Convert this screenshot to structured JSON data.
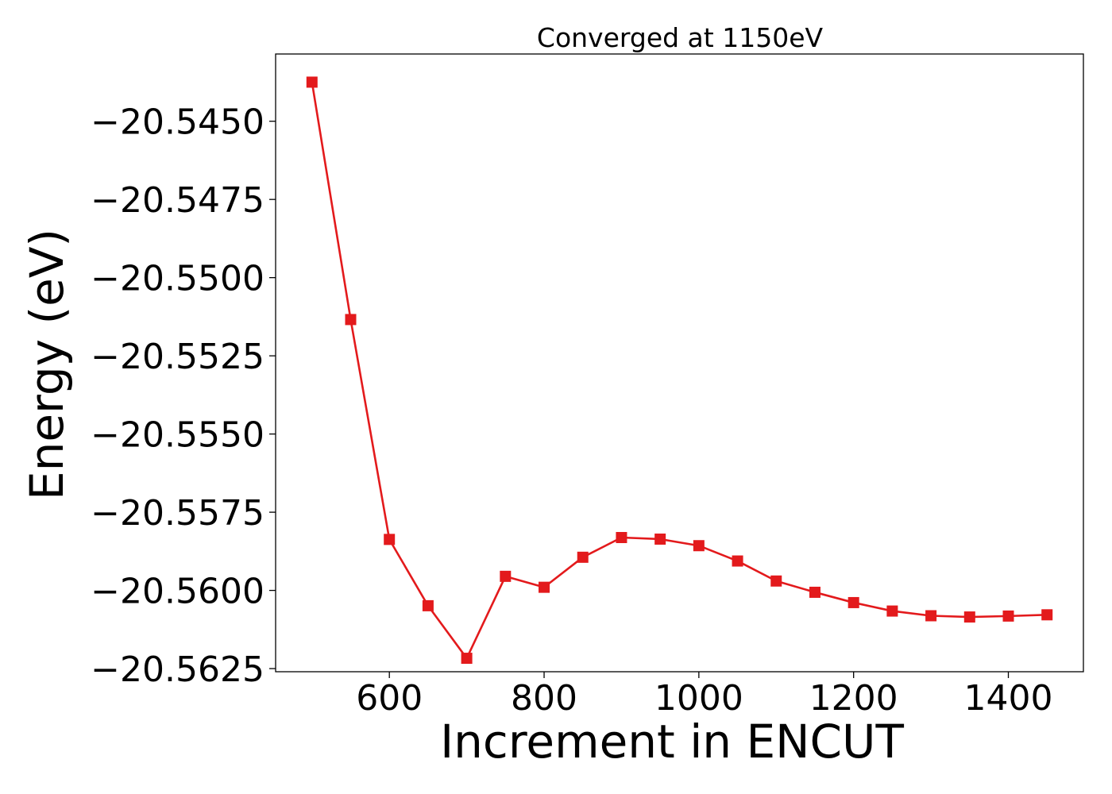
{
  "chart_data": {
    "type": "line",
    "title": "Converged at 1150eV",
    "xlabel": "Increment in ENCUT",
    "ylabel": "Energy (eV)",
    "xlim": [
      453,
      1497
    ],
    "ylim": [
      -20.5626,
      -20.54285
    ],
    "xticks": [
      600,
      800,
      1000,
      1200,
      1400
    ],
    "yticks": [
      -20.545,
      -20.5475,
      -20.55,
      -20.5525,
      -20.555,
      -20.5575,
      -20.56,
      -20.5625
    ],
    "ytick_labels": [
      "−20.5450",
      "−20.5475",
      "−20.5500",
      "−20.5525",
      "−20.5550",
      "−20.5575",
      "−20.5600",
      "−20.5625"
    ],
    "grid": false,
    "legend": "none",
    "color": "#e31a1c",
    "marker": "square",
    "series": [
      {
        "x": [
          500,
          550,
          600,
          650,
          700,
          750,
          800,
          850,
          900,
          950,
          1000,
          1050,
          1100,
          1150,
          1200,
          1250,
          1300,
          1350,
          1400,
          1450
        ],
        "y": [
          -20.54375,
          -20.55134,
          -20.55837,
          -20.56049,
          -20.56217,
          -20.55955,
          -20.5599,
          -20.55894,
          -20.55831,
          -20.55836,
          -20.55857,
          -20.55906,
          -20.5597,
          -20.56006,
          -20.56039,
          -20.56066,
          -20.56081,
          -20.56085,
          -20.56082,
          -20.56078
        ]
      }
    ]
  }
}
